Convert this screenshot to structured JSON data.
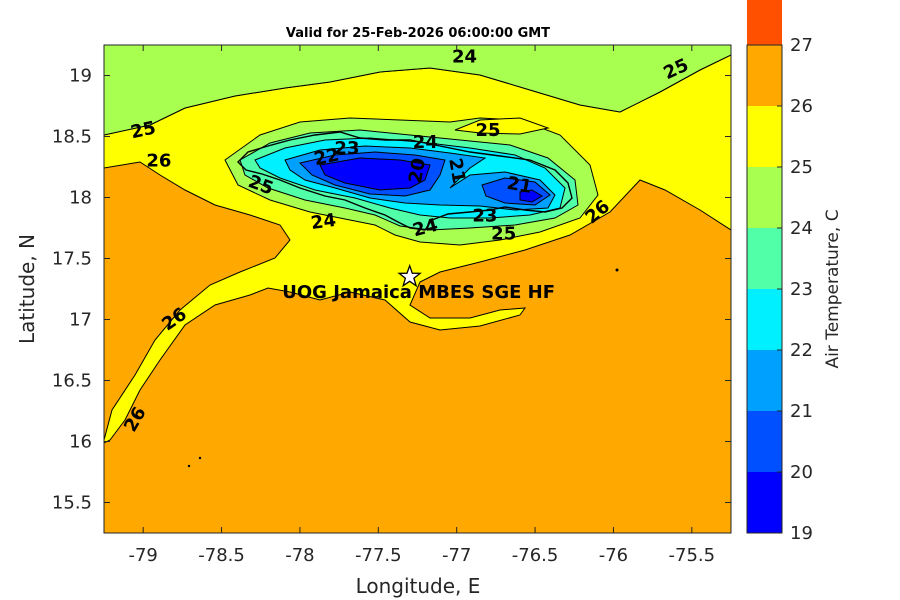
{
  "title": "Valid for 25-Feb-2026 06:00:00 GMT",
  "chart_data": {
    "type": "heatmap",
    "title": "Valid for 25-Feb-2026 06:00:00 GMT",
    "xlabel": "Longitude, E",
    "ylabel": "Latitude, N",
    "xlim": [
      -79.25,
      -75.25
    ],
    "ylim": [
      15.25,
      19.25
    ],
    "x_ticks": [
      -79,
      -78.5,
      -78,
      -77.5,
      -77,
      -76.5,
      -76,
      -75.5
    ],
    "y_ticks": [
      15.5,
      16,
      16.5,
      17,
      17.5,
      18,
      18.5,
      19
    ],
    "colorbar": {
      "label": "Air Temperature, C",
      "range": [
        19,
        27
      ],
      "ticks": [
        19,
        20,
        21,
        22,
        23,
        24,
        25,
        26,
        27
      ],
      "colors": [
        "#0000ff",
        "#0050ff",
        "#00a0ff",
        "#00f0ff",
        "#50ffa8",
        "#a8ff50",
        "#ffff00",
        "#ffa800",
        "#ff5000"
      ]
    },
    "contour_labels": [
      {
        "text": "24",
        "lon": -76.95,
        "lat": 19.15,
        "angle": 0
      },
      {
        "text": "25",
        "lon": -75.6,
        "lat": 19.05,
        "angle": -25
      },
      {
        "text": "25",
        "lon": -79.0,
        "lat": 18.55,
        "angle": -12
      },
      {
        "text": "26",
        "lon": -78.9,
        "lat": 18.3,
        "angle": 0
      },
      {
        "text": "25",
        "lon": -76.8,
        "lat": 18.55,
        "angle": 0
      },
      {
        "text": "23",
        "lon": -77.7,
        "lat": 18.4,
        "angle": 0
      },
      {
        "text": "22",
        "lon": -77.83,
        "lat": 18.33,
        "angle": -12
      },
      {
        "text": "24",
        "lon": -77.2,
        "lat": 18.45,
        "angle": 0
      },
      {
        "text": "20",
        "lon": -77.25,
        "lat": 18.22,
        "angle": -80
      },
      {
        "text": "21",
        "lon": -77.0,
        "lat": 18.22,
        "angle": 80
      },
      {
        "text": "21",
        "lon": -76.6,
        "lat": 18.1,
        "angle": 10
      },
      {
        "text": "25",
        "lon": -78.25,
        "lat": 18.1,
        "angle": 20
      },
      {
        "text": "24",
        "lon": -77.85,
        "lat": 17.8,
        "angle": -8
      },
      {
        "text": "23",
        "lon": -76.82,
        "lat": 17.85,
        "angle": 0
      },
      {
        "text": "24",
        "lon": -77.2,
        "lat": 17.75,
        "angle": -15
      },
      {
        "text": "25",
        "lon": -76.7,
        "lat": 17.7,
        "angle": 0
      },
      {
        "text": "26",
        "lon": -76.1,
        "lat": 17.88,
        "angle": -40
      },
      {
        "text": "26",
        "lon": -78.8,
        "lat": 17.0,
        "angle": -35
      },
      {
        "text": "26",
        "lon": -79.05,
        "lat": 16.18,
        "angle": -60
      }
    ],
    "stations": [
      {
        "name": "UOG Jamaica MBES SGE HF",
        "lon": -77.3,
        "lat": 17.35
      }
    ]
  }
}
